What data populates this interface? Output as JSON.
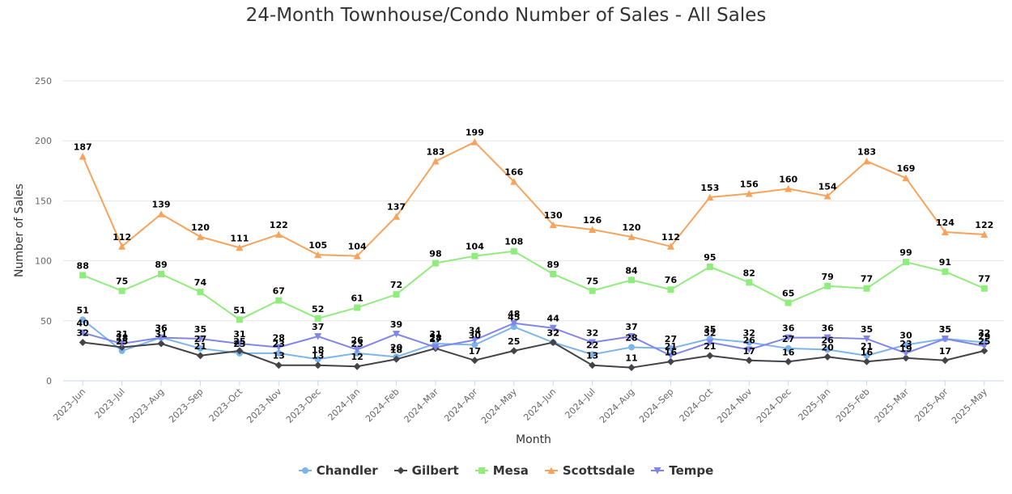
{
  "chart_data": {
    "type": "line",
    "title": "24-Month Townhouse/Condo Number of Sales - All Sales",
    "xlabel": "Month",
    "ylabel": "Number of Sales",
    "ylim": [
      0,
      250
    ],
    "yticks": [
      0,
      50,
      100,
      150,
      200,
      250
    ],
    "grid": true,
    "legend_position": "bottom-center",
    "categories": [
      "2023–Jun",
      "2023–Jul",
      "2023–Aug",
      "2023–Sep",
      "2023–Oct",
      "2023–Nov",
      "2023–Dec",
      "2024–Jan",
      "2024–Feb",
      "2024–Mar",
      "2024–Apr",
      "2024–May",
      "2024–Jun",
      "2024–Jul",
      "2024–Aug",
      "2024–Sep",
      "2024–Oct",
      "2024–Nov",
      "2024–Dec",
      "2025–Jan",
      "2025–Feb",
      "2025–Mar",
      "2025–Apr",
      "2025–May"
    ],
    "series": [
      {
        "name": "Chandler",
        "color": "#7cb5ec",
        "marker": "circle",
        "values": [
          51,
          25,
          36,
          27,
          23,
          23,
          18,
          23,
          20,
          31,
          30,
          45,
          32,
          22,
          28,
          27,
          35,
          32,
          27,
          26,
          21,
          30,
          35,
          32
        ]
      },
      {
        "name": "Gilbert",
        "color": "#434348",
        "marker": "diamond",
        "values": [
          32,
          28,
          31,
          21,
          25,
          13,
          13,
          12,
          18,
          27,
          17,
          25,
          32,
          13,
          11,
          16,
          21,
          17,
          16,
          20,
          16,
          19,
          17,
          25
        ]
      },
      {
        "name": "Mesa",
        "color": "#90ed7d",
        "marker": "square",
        "values": [
          88,
          75,
          89,
          74,
          51,
          67,
          52,
          61,
          72,
          98,
          104,
          108,
          89,
          75,
          84,
          76,
          95,
          82,
          65,
          79,
          77,
          99,
          91,
          77
        ]
      },
      {
        "name": "Scottsdale",
        "color": "#f7a35c",
        "marker": "triangle",
        "values": [
          187,
          112,
          139,
          120,
          111,
          122,
          105,
          104,
          137,
          183,
          199,
          166,
          130,
          126,
          120,
          112,
          153,
          156,
          160,
          154,
          183,
          169,
          124,
          122
        ]
      },
      {
        "name": "Tempe",
        "color": "#8085e9",
        "marker": "triangle-down",
        "values": [
          40,
          31,
          36,
          35,
          31,
          28,
          37,
          26,
          39,
          28,
          34,
          48,
          44,
          32,
          37,
          21,
          32,
          26,
          36,
          36,
          35,
          23,
          35,
          29
        ]
      }
    ]
  }
}
